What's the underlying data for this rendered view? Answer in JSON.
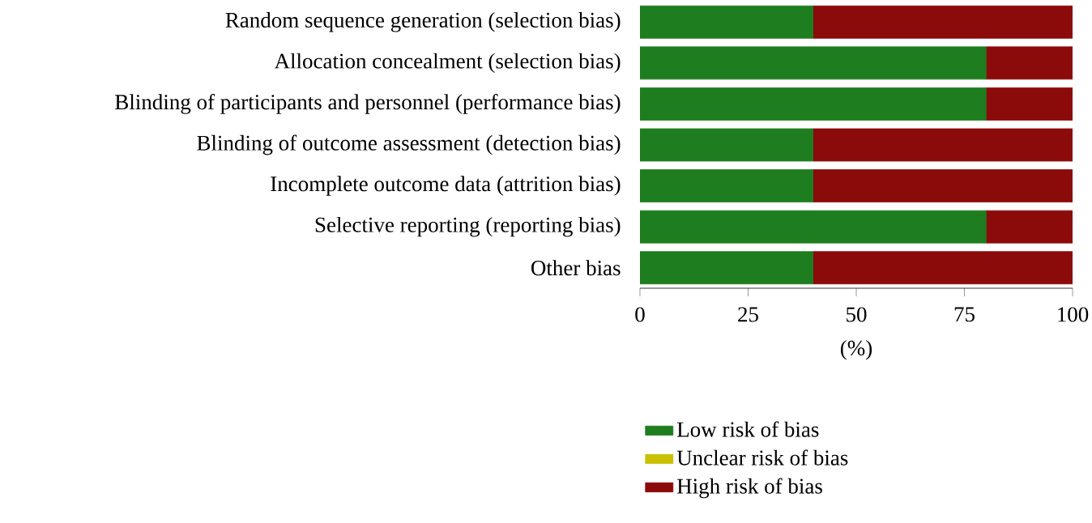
{
  "chart_data": {
    "type": "bar",
    "orientation": "horizontal",
    "stacked": true,
    "categories": [
      "Random sequence generation (selection bias)",
      "Allocation concealment (selection bias)",
      "Blinding of participants and personnel (performance bias)",
      "Blinding of outcome assessment (detection bias)",
      "Incomplete outcome data (attrition bias)",
      "Selective reporting (reporting bias)",
      "Other bias"
    ],
    "series": [
      {
        "name": "Low risk of bias",
        "color": "#1e7d1e",
        "values": [
          40,
          80,
          80,
          40,
          40,
          80,
          40
        ]
      },
      {
        "name": "Unclear risk of bias",
        "color": "#c8c000",
        "values": [
          0,
          0,
          0,
          0,
          0,
          0,
          0
        ]
      },
      {
        "name": "High risk of bias",
        "color": "#8b0a0a",
        "values": [
          60,
          20,
          20,
          60,
          60,
          20,
          60
        ]
      }
    ],
    "xlim": [
      0,
      100
    ],
    "xticks": [
      0,
      25,
      50,
      75,
      100
    ],
    "xlabel": "(%)",
    "legend": "bottom"
  }
}
